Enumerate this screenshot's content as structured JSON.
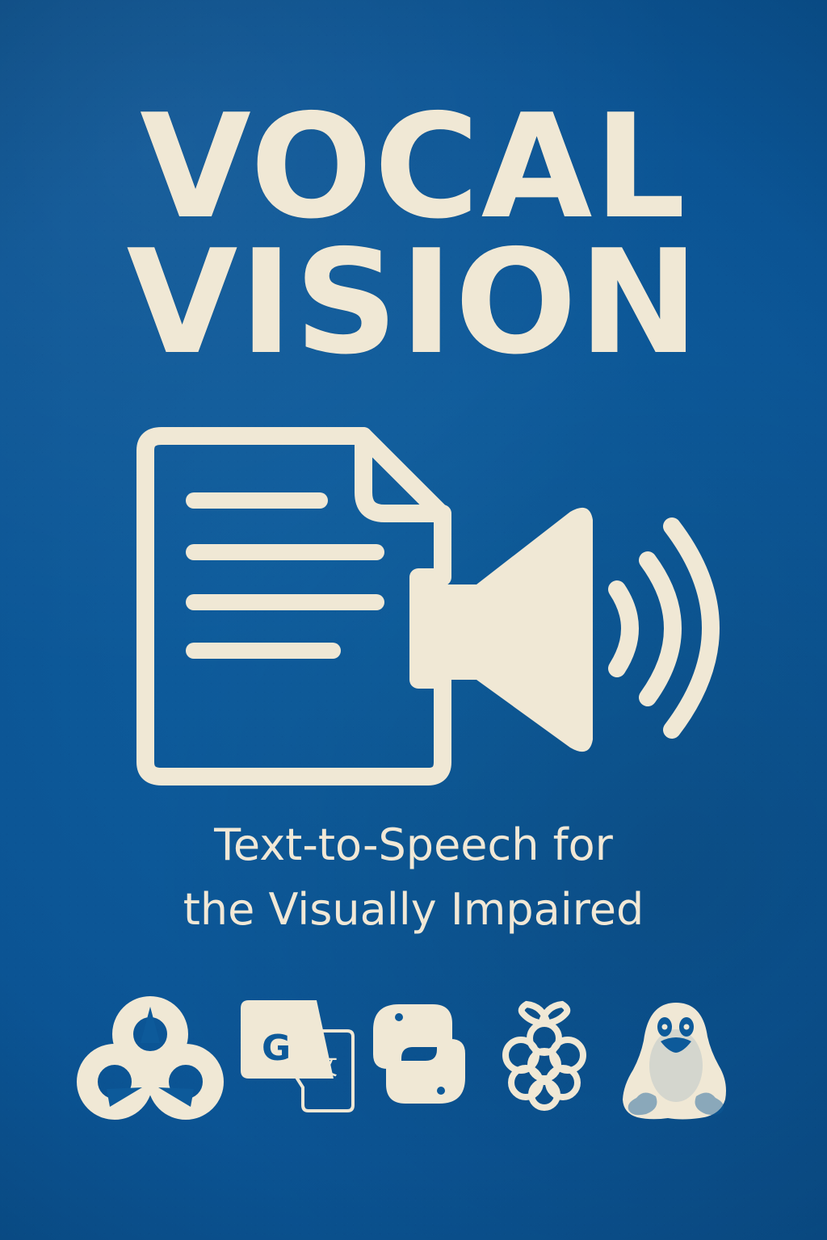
{
  "title": {
    "line1": "VOCAL",
    "line2": "VISION"
  },
  "subtitle": {
    "line1": "Text-to-Speech for",
    "line2": "the Visually Impaired"
  },
  "colors": {
    "background": "#0d5a9a",
    "foreground": "#f0e8d5"
  },
  "logos": {
    "google_translate_letter": "G",
    "google_translate_symbol": "文"
  },
  "icons": [
    "document-icon",
    "speaker-icon",
    "sound-waves-icon",
    "opencv-icon",
    "google-translate-icon",
    "python-icon",
    "raspberry-pi-icon",
    "linux-tux-icon"
  ]
}
